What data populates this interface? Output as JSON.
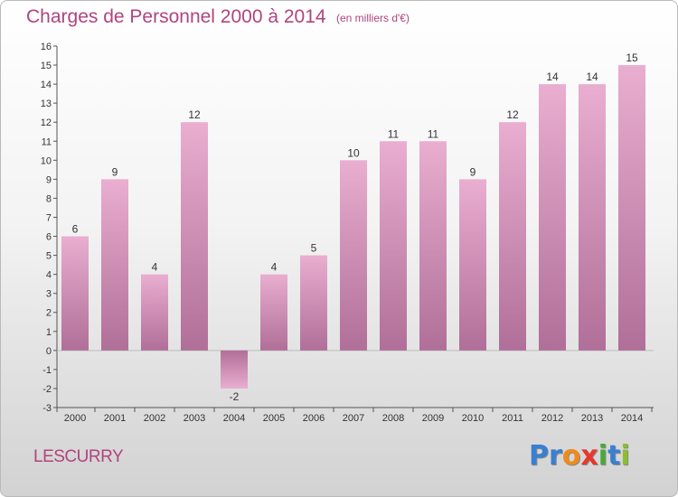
{
  "header": {
    "title": "Charges de Personnel 2000 à 2014",
    "subtitle": "(en milliers d'€)"
  },
  "footer": {
    "commune": "LESCURRY",
    "logo": "Proxiti"
  },
  "colors": {
    "bar_light": "#e9aed0",
    "bar_dark": "#b06f98",
    "text_accent": "#b0447f",
    "logo_letters": [
      "#3a7fd0",
      "#3a7fd0",
      "#f08a1c",
      "#e8372b",
      "#4aa83a",
      "#3a7fd0",
      "#8bbf2f"
    ]
  },
  "chart_data": {
    "type": "bar",
    "title": "Charges de Personnel 2000 à 2014",
    "subtitle": "(en milliers d'€)",
    "categories": [
      "2000",
      "2001",
      "2002",
      "2003",
      "2004",
      "2005",
      "2006",
      "2007",
      "2008",
      "2009",
      "2010",
      "2011",
      "2012",
      "2013",
      "2014"
    ],
    "values": [
      6,
      9,
      4,
      12,
      -2,
      4,
      5,
      10,
      11,
      11,
      9,
      12,
      14,
      14,
      15
    ],
    "xlabel": "",
    "ylabel": "",
    "ylim": [
      -3,
      16
    ],
    "yticks": [
      "-3",
      "-2",
      "-1",
      "0",
      "1",
      "2",
      "3",
      "4",
      "5",
      "6",
      "7",
      "8",
      "9",
      "10",
      "11",
      "12",
      "13",
      "14",
      "15",
      "16"
    ],
    "grid": false,
    "legend": "none"
  }
}
